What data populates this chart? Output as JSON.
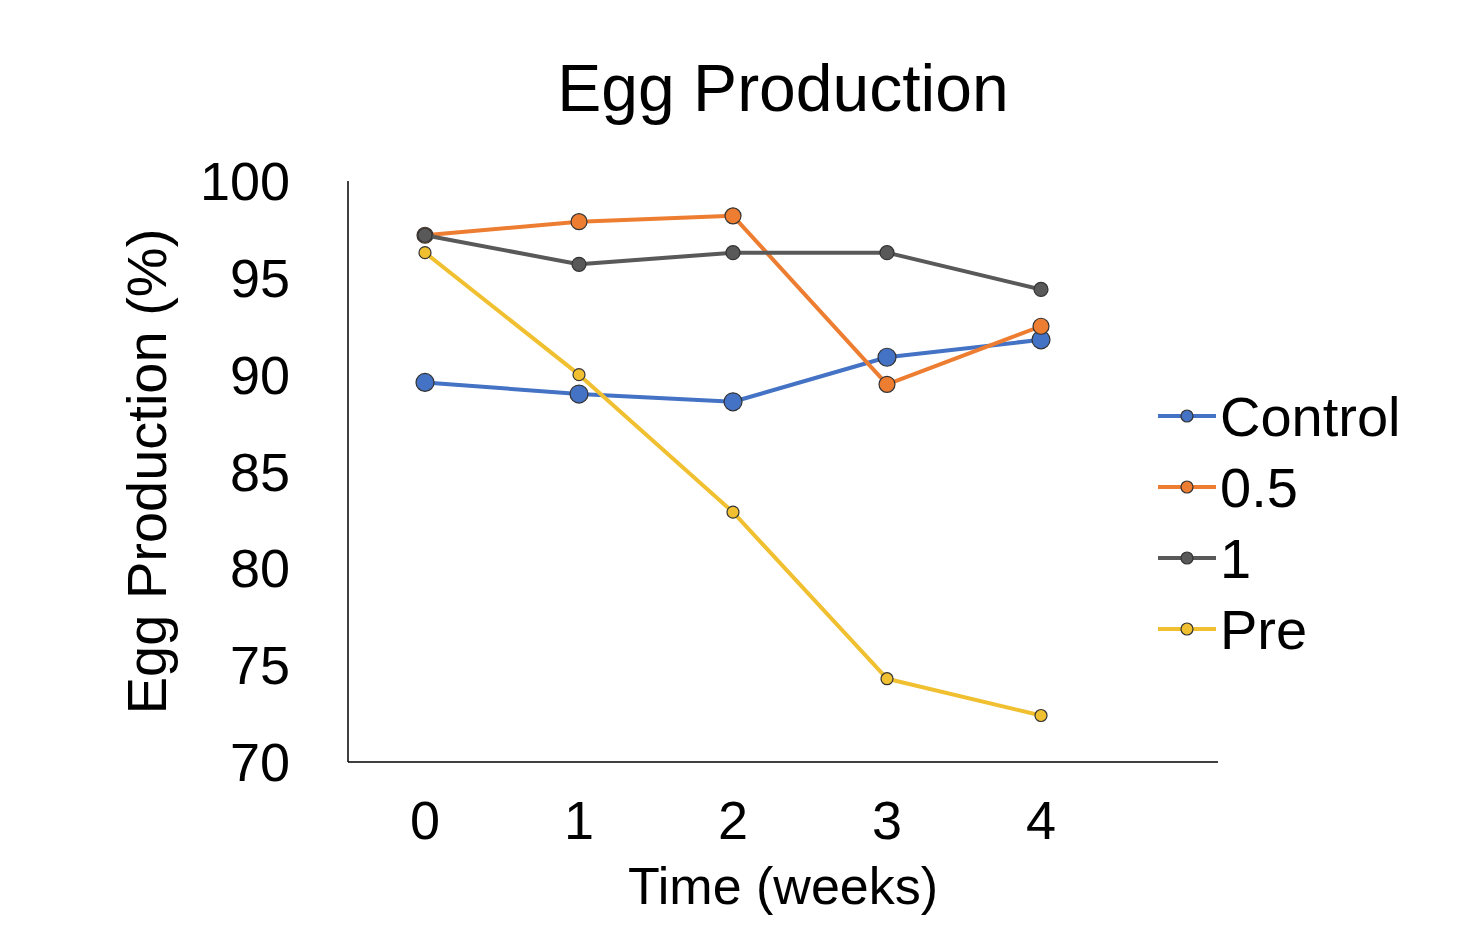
{
  "chart_data": {
    "type": "line",
    "title": "Egg Production",
    "xlabel": "Time (weeks)",
    "ylabel": "Egg Production (%)",
    "categories": [
      "0",
      "1",
      "2",
      "3",
      "4"
    ],
    "ylim": [
      70,
      100
    ],
    "yticks": [
      70,
      75,
      80,
      85,
      90,
      95,
      100
    ],
    "grid": false,
    "legend": "right",
    "marker": "circle",
    "line_style": "solid",
    "series": [
      {
        "name": "Control",
        "color": "#4472c4",
        "values": [
          89.6,
          89.0,
          88.6,
          90.9,
          91.8
        ]
      },
      {
        "name": "0.5",
        "color": "#ed7d31",
        "values": [
          97.2,
          97.9,
          98.2,
          89.5,
          92.5
        ]
      },
      {
        "name": "1",
        "color": "#595959",
        "values": [
          97.2,
          95.7,
          96.3,
          96.3,
          94.4
        ]
      },
      {
        "name": "Pre",
        "color": "#f0c030",
        "values": [
          96.3,
          90.0,
          82.9,
          74.3,
          72.4
        ]
      }
    ]
  }
}
